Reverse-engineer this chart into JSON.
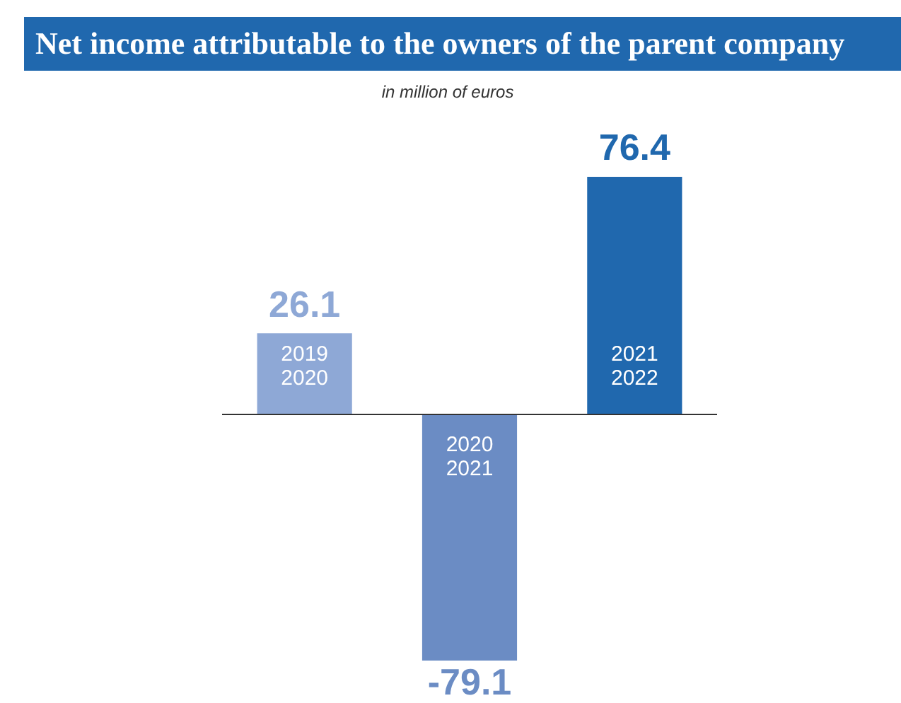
{
  "chart_data": {
    "type": "bar",
    "title": "Net income attributable to the owners of the parent company",
    "subtitle": "in million of euros",
    "categories": [
      "2019 2020",
      "2020 2021",
      "2021 2022"
    ],
    "values": [
      26.1,
      -79.1,
      76.4
    ],
    "colors": [
      "#8ea8d6",
      "#6b8cc4",
      "#2068ae"
    ],
    "data_labels": true
  }
}
